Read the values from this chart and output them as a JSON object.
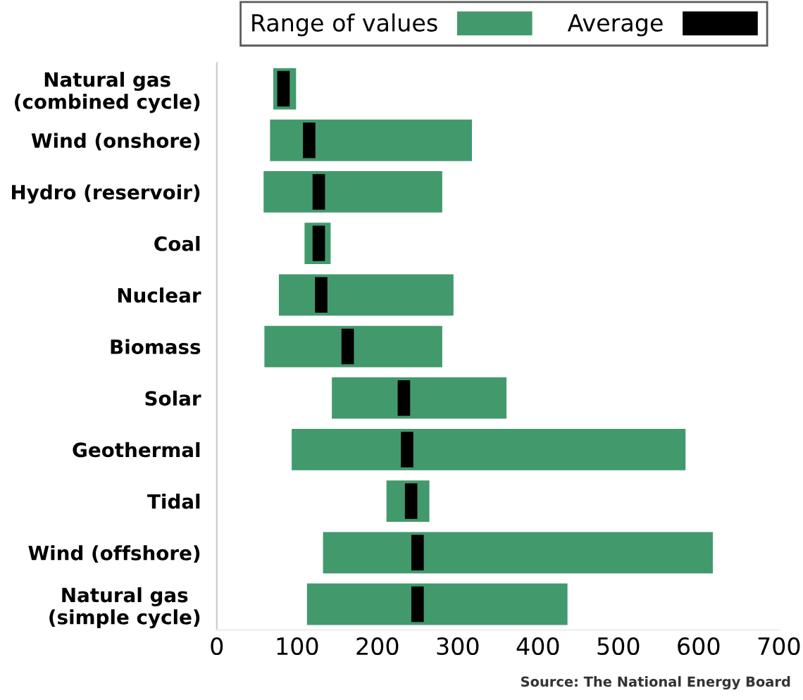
{
  "chart_data": {
    "type": "bar",
    "orientation": "horizontal",
    "categories": [
      "Natural gas\n(combined cycle)",
      "Wind (onshore)",
      "Hydro (reservoir)",
      "Coal",
      "Nuclear",
      "Biomass",
      "Solar",
      "Geothermal",
      "Tidal",
      "Wind (offshore)",
      "Natural gas\n(simple cycle)"
    ],
    "series": [
      {
        "name": "Range of values",
        "color": "#429a6c",
        "base": [
          71,
          67,
          59,
          110,
          78,
          60,
          144,
          94,
          212,
          133,
          113
        ],
        "values": [
          27,
          250,
          221,
          31,
          216,
          220,
          216,
          489,
          52,
          484,
          323
        ]
      },
      {
        "name": "Average",
        "type": "scatter",
        "marker": "square",
        "color": "#000000",
        "values": [
          83,
          115,
          127,
          127,
          130,
          163,
          233,
          237,
          242,
          250,
          250
        ]
      }
    ],
    "xlim": [
      0,
      700
    ],
    "xticks": [
      0,
      100,
      200,
      300,
      400,
      500,
      600,
      700
    ],
    "grid": false,
    "legend": "top right",
    "annotations": [
      "Source: The National Energy Board"
    ]
  }
}
